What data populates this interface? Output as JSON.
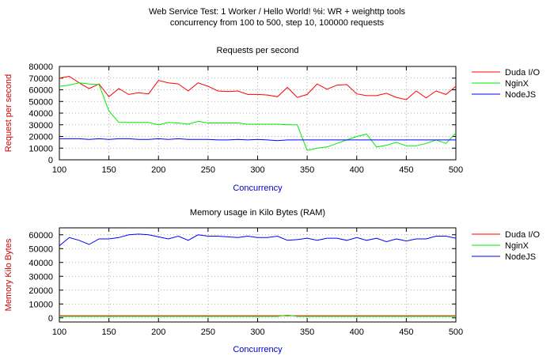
{
  "page": {
    "title_line1": "Web Service Test: 1 Worker / Hello World! %i: WR + weighttp tools",
    "title_line2": "concurrency from 100 to 500, step 10, 100000 requests"
  },
  "colors": {
    "Duda I/O": "#ff0000",
    "NginX": "#00ee00",
    "NodeJS": "#0000ff"
  },
  "chart_data": [
    {
      "type": "line",
      "title": "Requests per second",
      "xlabel": "Concurrency",
      "ylabel": "Request per second",
      "xlim": [
        100,
        500
      ],
      "ylim": [
        0,
        80000
      ],
      "xticks": [
        100,
        150,
        200,
        250,
        300,
        350,
        400,
        450,
        500
      ],
      "yticks": [
        0,
        10000,
        20000,
        30000,
        40000,
        50000,
        60000,
        70000,
        80000
      ],
      "grid": true,
      "legend_position": "right",
      "x": [
        100,
        110,
        120,
        130,
        140,
        150,
        160,
        170,
        180,
        190,
        200,
        210,
        220,
        230,
        240,
        250,
        260,
        270,
        280,
        290,
        300,
        310,
        320,
        330,
        340,
        350,
        360,
        370,
        380,
        390,
        400,
        410,
        420,
        430,
        440,
        450,
        460,
        470,
        480,
        490,
        500
      ],
      "series": [
        {
          "name": "Duda I/O",
          "values": [
            70000,
            71500,
            66000,
            61000,
            65000,
            54000,
            61000,
            56000,
            57500,
            56500,
            68000,
            66000,
            65000,
            59000,
            66000,
            63000,
            59000,
            58500,
            59000,
            56000,
            56000,
            55500,
            54000,
            62000,
            53500,
            56000,
            65000,
            60500,
            64000,
            64500,
            56500,
            55000,
            55000,
            57000,
            53500,
            51500,
            59000,
            53000,
            59000,
            56000,
            63000
          ]
        },
        {
          "name": "NginX",
          "values": [
            63000,
            64000,
            66000,
            65000,
            64500,
            42000,
            32000,
            32000,
            32000,
            32000,
            30000,
            32000,
            31500,
            30500,
            33000,
            31500,
            31500,
            31500,
            31500,
            30500,
            30500,
            30500,
            30500,
            30000,
            30000,
            8000,
            10000,
            11000,
            14000,
            17000,
            20000,
            22000,
            11000,
            12500,
            15000,
            12000,
            12000,
            14000,
            17000,
            14000,
            23000
          ]
        },
        {
          "name": "NodeJS",
          "values": [
            18000,
            18000,
            18000,
            17500,
            18000,
            17500,
            18000,
            18000,
            17500,
            17500,
            18000,
            17500,
            18000,
            17500,
            17500,
            17500,
            17000,
            17000,
            17500,
            17000,
            17500,
            17000,
            16500,
            17000,
            17000,
            17000,
            17000,
            17000,
            17000,
            17000,
            17000,
            17000,
            17000,
            17000,
            17000,
            17000,
            17000,
            17000,
            17000,
            17000,
            17000
          ]
        }
      ]
    },
    {
      "type": "line",
      "title": "Memory usage in Kilo Bytes (RAM)",
      "xlabel": "Concurrency",
      "ylabel": "Memory Kilo Bytes",
      "xlim": [
        100,
        500
      ],
      "ylim": [
        -3000,
        65000
      ],
      "xticks": [
        100,
        150,
        200,
        250,
        300,
        350,
        400,
        450,
        500
      ],
      "yticks": [
        0,
        10000,
        20000,
        30000,
        40000,
        50000,
        60000
      ],
      "grid": true,
      "legend_position": "right",
      "x": [
        100,
        110,
        120,
        130,
        140,
        150,
        160,
        170,
        180,
        190,
        200,
        210,
        220,
        230,
        240,
        250,
        260,
        270,
        280,
        290,
        300,
        310,
        320,
        330,
        340,
        350,
        360,
        370,
        380,
        390,
        400,
        410,
        420,
        430,
        440,
        450,
        460,
        470,
        480,
        490,
        500
      ],
      "series": [
        {
          "name": "Duda I/O",
          "values": [
            1500,
            1500,
            1500,
            1500,
            1500,
            1500,
            1500,
            1500,
            1500,
            1500,
            1500,
            1500,
            1500,
            1500,
            1500,
            1500,
            1500,
            1500,
            1500,
            1500,
            1500,
            1500,
            1500,
            1500,
            1500,
            1500,
            1500,
            1500,
            1500,
            1500,
            1500,
            1500,
            1500,
            1500,
            1500,
            1500,
            1500,
            1500,
            1500,
            1500,
            1500
          ]
        },
        {
          "name": "NginX",
          "values": [
            1000,
            1000,
            1000,
            1000,
            1000,
            1000,
            1000,
            1000,
            1000,
            1000,
            1000,
            1000,
            1000,
            1000,
            1000,
            1000,
            1000,
            1000,
            1000,
            1000,
            1000,
            1000,
            1000,
            2000,
            1000,
            1000,
            1000,
            1000,
            1000,
            1000,
            1000,
            1000,
            1000,
            1000,
            1000,
            1000,
            1000,
            1000,
            1000,
            1000,
            1000
          ]
        },
        {
          "name": "NodeJS",
          "values": [
            52000,
            58000,
            56000,
            53000,
            57000,
            57000,
            58000,
            60000,
            60500,
            60000,
            58500,
            57000,
            59000,
            56000,
            60000,
            59000,
            59000,
            58500,
            58000,
            59000,
            58000,
            58000,
            59000,
            56000,
            56500,
            57500,
            56000,
            57500,
            57500,
            56000,
            58000,
            56000,
            57500,
            55000,
            57000,
            55500,
            57000,
            57000,
            59000,
            59000,
            57500
          ]
        }
      ]
    }
  ]
}
